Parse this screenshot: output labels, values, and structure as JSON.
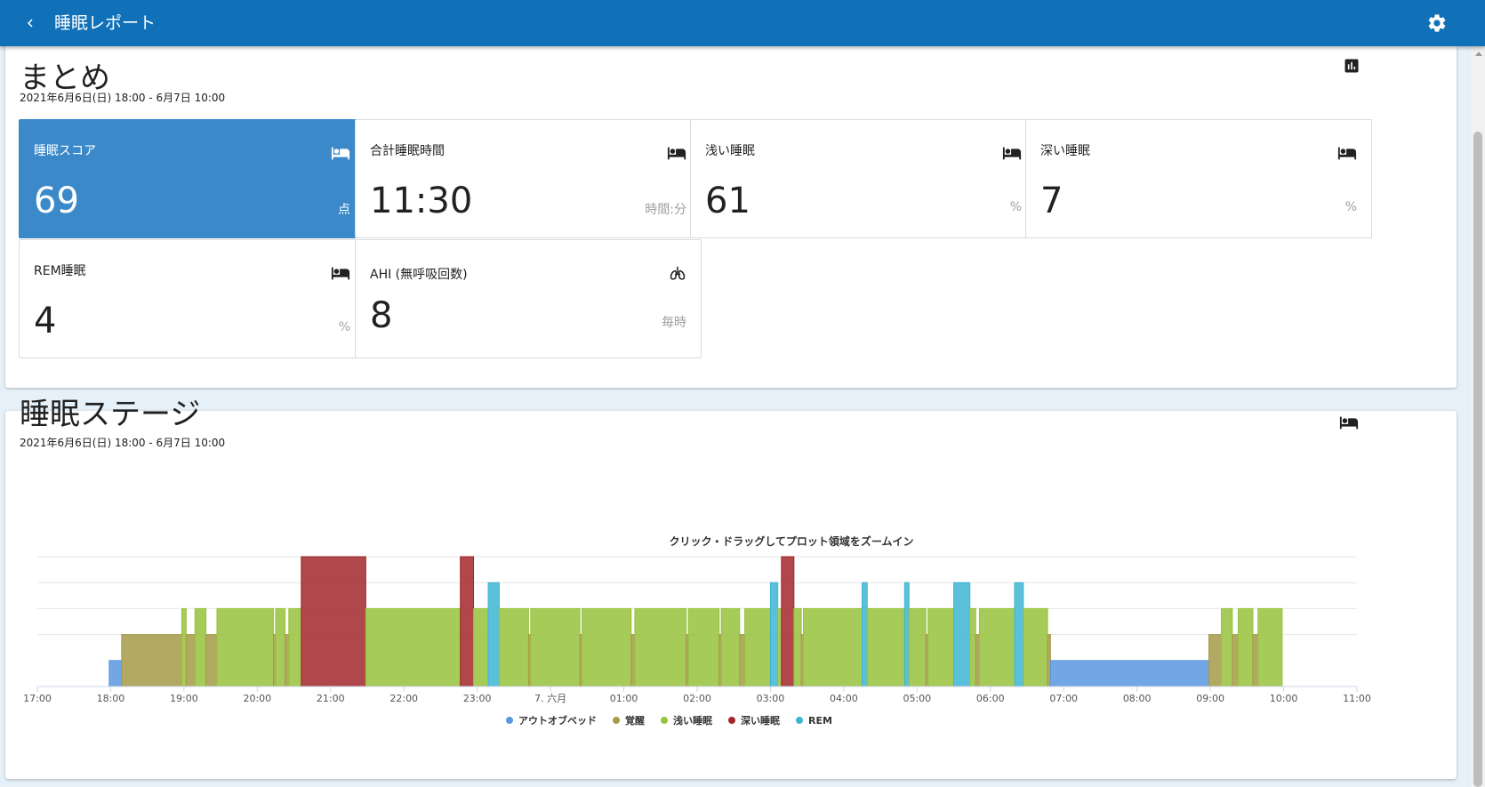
{
  "app": {
    "title": "睡眠レポート",
    "back_icon": "chevron-left-icon",
    "settings_icon": "gear-icon"
  },
  "summary": {
    "title": "まとめ",
    "date_range": "2021年6月6日(日) 18:00 - 6月7日 10:00",
    "corner_icon": "bar-chart-icon",
    "tiles": [
      {
        "label": "睡眠スコア",
        "value": "69",
        "unit": "点",
        "icon": "bed-icon",
        "active": true
      },
      {
        "label": "合計睡眠時間",
        "value": "11:30",
        "unit": "時間:分",
        "icon": "bed-icon"
      },
      {
        "label": "浅い睡眠",
        "value": "61",
        "unit": "%",
        "icon": "bed-icon"
      },
      {
        "label": "深い睡眠",
        "value": "7",
        "unit": "%",
        "icon": "bed-icon"
      },
      {
        "label": "REM睡眠",
        "value": "4",
        "unit": "%",
        "icon": "bed-icon"
      },
      {
        "label": "AHI (無呼吸回数)",
        "value": "8",
        "unit": "毎時",
        "icon": "lungs-icon"
      }
    ]
  },
  "stages": {
    "title": "睡眠ステージ",
    "date_range": "2021年6月6日(日) 18:00 - 6月7日 10:00",
    "corner_icon": "bed-icon"
  },
  "colors": {
    "header": "#1071b8",
    "active_tile": "#3b89c9",
    "out_of_bed": "#5a96df",
    "awake": "#a59b48",
    "light": "#98c23c",
    "deep": "#a2272c",
    "rem": "#3eb5d3"
  },
  "chart_data": {
    "type": "bar",
    "title": "クリック・ドラッグしてプロット領域をズームイン",
    "x_ticks": [
      "17:00",
      "18:00",
      "19:00",
      "20:00",
      "21:00",
      "22:00",
      "23:00",
      "7. 六月",
      "01:00",
      "02:00",
      "03:00",
      "04:00",
      "05:00",
      "06:00",
      "07:00",
      "08:00",
      "09:00",
      "10:00",
      "11:00"
    ],
    "x_unit": "hours since 17:00",
    "xlim": [
      0,
      18
    ],
    "ylim": [
      0,
      5
    ],
    "grid": true,
    "legend_placement": "bottom",
    "legend": [
      {
        "name": "アウトオブベッド",
        "level": 1
      },
      {
        "name": "覚醒",
        "level": 2
      },
      {
        "name": "浅い睡眠",
        "level": 3
      },
      {
        "name": "深い睡眠",
        "level": 5
      },
      {
        "name": "REM",
        "level": 4
      }
    ],
    "segments": [
      {
        "stage": "アウトオブベッド",
        "start": 0.98,
        "end": 1.15
      },
      {
        "stage": "覚醒",
        "start": 1.15,
        "end": 1.97
      },
      {
        "stage": "浅い睡眠",
        "start": 1.97,
        "end": 2.03
      },
      {
        "stage": "覚醒",
        "start": 2.03,
        "end": 2.15
      },
      {
        "stage": "浅い睡眠",
        "start": 2.15,
        "end": 2.3
      },
      {
        "stage": "覚醒",
        "start": 2.3,
        "end": 2.45
      },
      {
        "stage": "浅い睡眠",
        "start": 2.45,
        "end": 3.22
      },
      {
        "stage": "覚醒",
        "start": 3.22,
        "end": 3.25
      },
      {
        "stage": "浅い睡眠",
        "start": 3.25,
        "end": 3.38
      },
      {
        "stage": "覚醒",
        "start": 3.38,
        "end": 3.43
      },
      {
        "stage": "浅い睡眠",
        "start": 3.43,
        "end": 3.6
      },
      {
        "stage": "深い睡眠",
        "start": 3.6,
        "end": 4.48
      },
      {
        "stage": "浅い睡眠",
        "start": 4.48,
        "end": 5.77
      },
      {
        "stage": "深い睡眠",
        "start": 5.77,
        "end": 5.95
      },
      {
        "stage": "浅い睡眠",
        "start": 5.95,
        "end": 6.15
      },
      {
        "stage": "REM",
        "start": 6.15,
        "end": 6.3
      },
      {
        "stage": "浅い睡眠",
        "start": 6.3,
        "end": 6.7
      },
      {
        "stage": "覚醒",
        "start": 6.7,
        "end": 6.73
      },
      {
        "stage": "浅い睡眠",
        "start": 6.73,
        "end": 7.4
      },
      {
        "stage": "覚醒",
        "start": 7.4,
        "end": 7.43
      },
      {
        "stage": "浅い睡眠",
        "start": 7.43,
        "end": 8.1
      },
      {
        "stage": "覚醒",
        "start": 8.1,
        "end": 8.15
      },
      {
        "stage": "浅い睡眠",
        "start": 8.15,
        "end": 8.85
      },
      {
        "stage": "覚醒",
        "start": 8.85,
        "end": 8.88
      },
      {
        "stage": "浅い睡眠",
        "start": 8.88,
        "end": 9.3
      },
      {
        "stage": "覚醒",
        "start": 9.3,
        "end": 9.33
      },
      {
        "stage": "浅い睡眠",
        "start": 9.33,
        "end": 9.58
      },
      {
        "stage": "覚醒",
        "start": 9.58,
        "end": 9.65
      },
      {
        "stage": "浅い睡眠",
        "start": 9.65,
        "end": 10.0
      },
      {
        "stage": "REM",
        "start": 10.0,
        "end": 10.1
      },
      {
        "stage": "浅い睡眠",
        "start": 10.1,
        "end": 10.15
      },
      {
        "stage": "深い睡眠",
        "start": 10.15,
        "end": 10.32
      },
      {
        "stage": "浅い睡眠",
        "start": 10.32,
        "end": 10.42
      },
      {
        "stage": "覚醒",
        "start": 10.42,
        "end": 10.45
      },
      {
        "stage": "浅い睡眠",
        "start": 10.45,
        "end": 11.25
      },
      {
        "stage": "REM",
        "start": 11.25,
        "end": 11.32
      },
      {
        "stage": "浅い睡眠",
        "start": 11.32,
        "end": 11.83
      },
      {
        "stage": "REM",
        "start": 11.83,
        "end": 11.89
      },
      {
        "stage": "浅い睡眠",
        "start": 11.89,
        "end": 12.12
      },
      {
        "stage": "覚醒",
        "start": 12.12,
        "end": 12.15
      },
      {
        "stage": "浅い睡眠",
        "start": 12.15,
        "end": 12.5
      },
      {
        "stage": "REM",
        "start": 12.5,
        "end": 12.72
      },
      {
        "stage": "浅い睡眠",
        "start": 12.72,
        "end": 12.8
      },
      {
        "stage": "覚醒",
        "start": 12.8,
        "end": 12.85
      },
      {
        "stage": "浅い睡眠",
        "start": 12.85,
        "end": 13.33
      },
      {
        "stage": "REM",
        "start": 13.33,
        "end": 13.45
      },
      {
        "stage": "浅い睡眠",
        "start": 13.45,
        "end": 13.78
      },
      {
        "stage": "覚醒",
        "start": 13.78,
        "end": 13.82
      },
      {
        "stage": "アウトオブベッド",
        "start": 13.82,
        "end": 15.98
      },
      {
        "stage": "覚醒",
        "start": 15.98,
        "end": 16.15
      },
      {
        "stage": "浅い睡眠",
        "start": 16.15,
        "end": 16.3
      },
      {
        "stage": "覚醒",
        "start": 16.3,
        "end": 16.38
      },
      {
        "stage": "浅い睡眠",
        "start": 16.38,
        "end": 16.58
      },
      {
        "stage": "覚醒",
        "start": 16.58,
        "end": 16.65
      },
      {
        "stage": "浅い睡眠",
        "start": 16.65,
        "end": 16.98
      }
    ]
  }
}
